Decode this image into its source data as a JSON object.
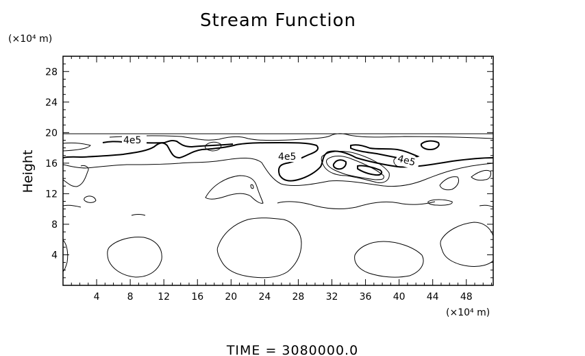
{
  "chart_data": {
    "type": "contour",
    "title": "Stream Function",
    "ylabel": "Height",
    "x_unit_label": "(×10⁴ m)",
    "y_unit_label": "(×10⁴ m)",
    "x_ticks": [
      4,
      8,
      12,
      16,
      20,
      24,
      28,
      32,
      36,
      40,
      44,
      48
    ],
    "y_ticks": [
      4,
      8,
      12,
      16,
      20,
      24,
      28
    ],
    "xlim": [
      0,
      51.2
    ],
    "ylim": [
      0,
      30
    ],
    "grid": false,
    "contour_labels": [
      "4e5",
      "4e5",
      "4e5"
    ],
    "footer": "TIME = 3080000.0"
  }
}
